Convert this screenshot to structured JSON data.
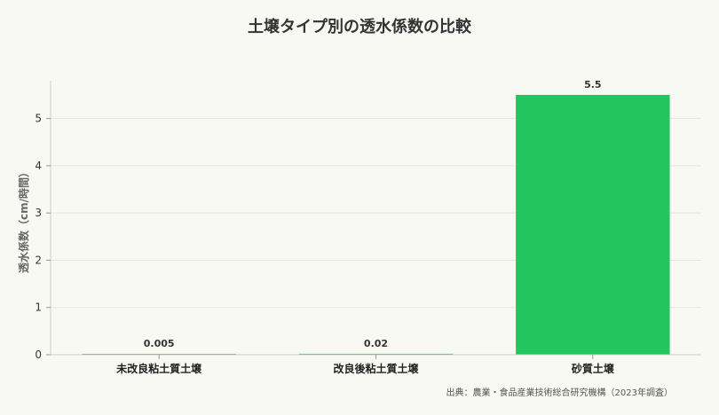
{
  "chart_data": {
    "type": "bar",
    "title": "土壌タイプ別の透水係数の比較",
    "ylabel": "透水係数（cm/時間）",
    "xlabel": "",
    "categories": [
      "未改良粘土質土壌",
      "改良後粘土質土壌",
      "砂質土壌"
    ],
    "values": [
      0.005,
      0.02,
      5.5
    ],
    "value_labels": [
      "0.005",
      "0.02",
      "5.5"
    ],
    "ylim": [
      0,
      5.8
    ],
    "yticks": [
      0,
      1,
      2,
      3,
      4,
      5
    ],
    "grid": true,
    "legend": "none",
    "bar_color": "#22c55e",
    "source": "出典：農業・食品産業技術総合研究機構（2023年調査）"
  }
}
